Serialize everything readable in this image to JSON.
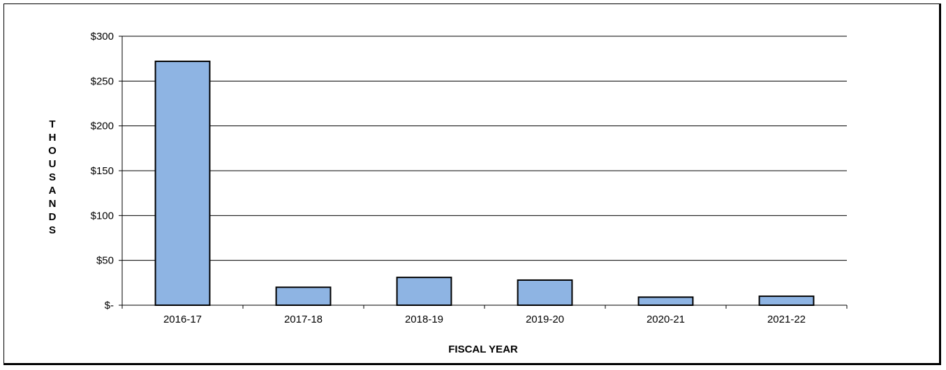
{
  "chart_data": {
    "type": "bar",
    "categories": [
      "2016-17",
      "2017-18",
      "2018-19",
      "2019-20",
      "2020-21",
      "2021-22"
    ],
    "values": [
      272,
      20,
      31,
      28,
      9,
      10
    ],
    "ylim": [
      0,
      300
    ],
    "yticks": [
      0,
      50,
      100,
      150,
      200,
      250,
      300
    ],
    "ytick_labels": [
      "$-",
      "$50",
      "$100",
      "$150",
      "$200",
      "$250",
      "$300"
    ],
    "xlabel": "FISCAL YEAR",
    "ylabel": "THOUSANDS",
    "grid": true,
    "bar_color": "#8eb4e3"
  }
}
